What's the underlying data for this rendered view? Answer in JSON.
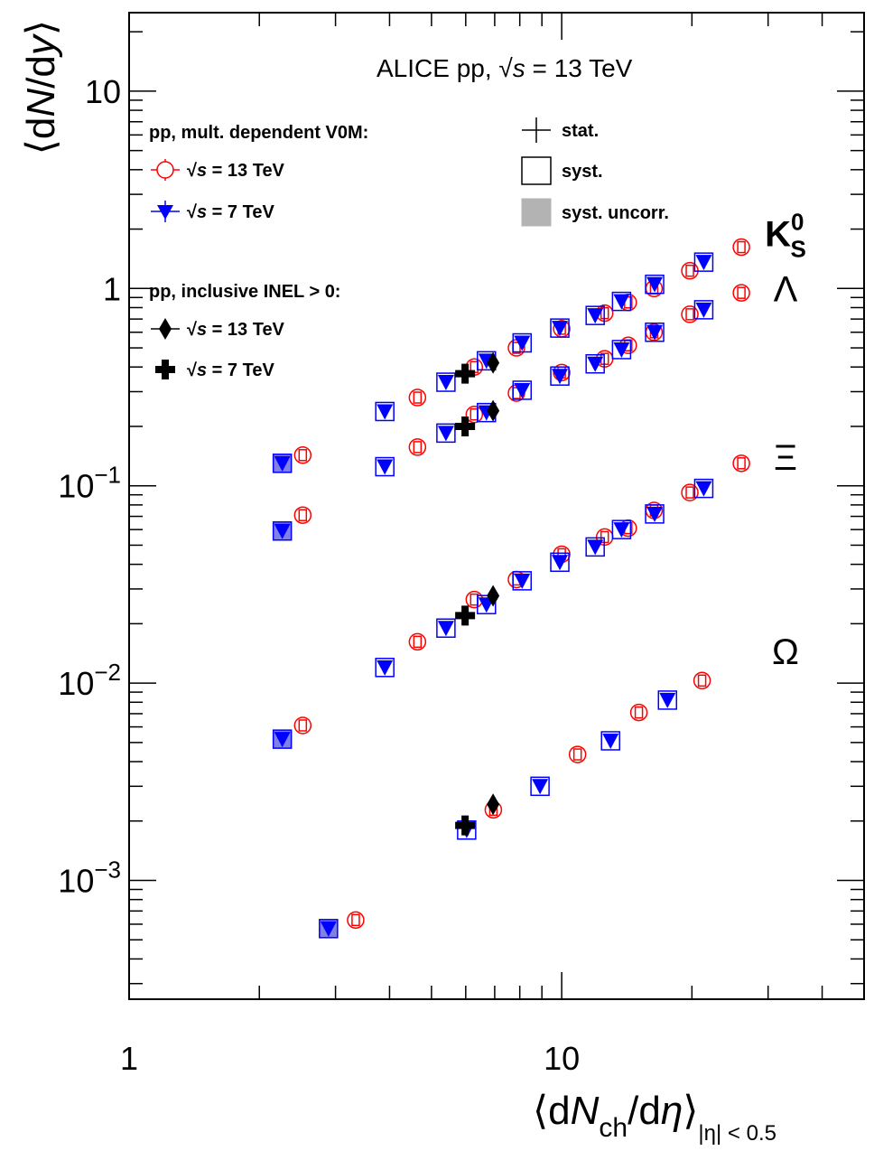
{
  "chart_data": {
    "type": "scatter",
    "title": "ALICE pp, √s = 13 TeV",
    "title_parts": {
      "pre": "ALICE pp, ",
      "sqrt": "√",
      "var": "s",
      "post": " = 13 TeV"
    },
    "xlabel": "⟨dNch/dη⟩|η| < 0.5",
    "xlabel_parts": {
      "open": "⟨d",
      "N": "N",
      "sub": "ch",
      "mid": "/d",
      "eta": "η",
      "close": "⟩",
      "range": "|η| < 0.5"
    },
    "ylabel": "⟨dN/dy⟩",
    "ylabel_parts": {
      "open": "⟨d",
      "N": "N",
      "mid": "/d",
      "y": "y",
      "close": "⟩"
    },
    "x_scale": "log",
    "y_scale": "log",
    "xlim": [
      1,
      50
    ],
    "ylim": [
      0.00025,
      25
    ],
    "x_ticks": [
      {
        "value": 1,
        "label": "1"
      },
      {
        "value": 10,
        "label": "10"
      }
    ],
    "y_ticks": [
      {
        "value": 0.001,
        "base": "10",
        "exp": "−3"
      },
      {
        "value": 0.01,
        "base": "10",
        "exp": "−2"
      },
      {
        "value": 0.1,
        "base": "10",
        "exp": "−1"
      },
      {
        "value": 1,
        "label": "1"
      },
      {
        "value": 10,
        "label": "10"
      }
    ],
    "grid": false,
    "legend_position": "top-left",
    "legend": {
      "heading_mult": "pp, mult. dependent V0M:",
      "heading_inel": "pp, inclusive INEL > 0:",
      "sqrt": "√",
      "s": "s",
      "e13": " = 13 TeV",
      "e7": " = 7 TeV",
      "stat": "stat.",
      "syst": "syst.",
      "syst_uncorr": "syst. uncorr."
    },
    "colors": {
      "pp13": "#ff0000",
      "pp7": "#0000ff",
      "pp7_uncorr_fill": "#8080e6",
      "inel": "#000000"
    },
    "particles": [
      {
        "id": "K0S",
        "label": "K",
        "sup": "0",
        "sub": "S",
        "label_y": 1.9
      },
      {
        "id": "Lambda",
        "label": "Λ",
        "label_y": 1.0
      },
      {
        "id": "Xi",
        "label": "Ξ",
        "label_y": 0.14
      },
      {
        "id": "Omega",
        "label": "Ω",
        "label_y": 0.0145
      }
    ],
    "series": [
      {
        "name": "pp, mult. dependent V0M √s = 13 TeV",
        "marker": "open-circle",
        "color": "#ff0000",
        "particle": "K0S",
        "x": [
          2.52,
          4.64,
          6.28,
          7.86,
          10.0,
          12.57,
          14.25,
          16.35,
          19.78,
          26.02
        ],
        "y": [
          0.143,
          0.28,
          0.4,
          0.5,
          0.625,
          0.75,
          0.85,
          1.0,
          1.23,
          1.62
        ]
      },
      {
        "name": "pp, mult. dependent V0M √s = 13 TeV",
        "marker": "open-circle",
        "color": "#ff0000",
        "particle": "Lambda",
        "x": [
          2.52,
          4.64,
          6.28,
          7.86,
          10.0,
          12.57,
          14.25,
          16.35,
          19.78,
          26.02
        ],
        "y": [
          0.071,
          0.157,
          0.23,
          0.295,
          0.375,
          0.44,
          0.515,
          0.6,
          0.74,
          0.95
        ]
      },
      {
        "name": "pp, mult. dependent V0M √s = 13 TeV",
        "marker": "open-circle",
        "color": "#ff0000",
        "particle": "Xi",
        "x": [
          2.52,
          4.64,
          6.28,
          7.86,
          10.0,
          12.57,
          14.25,
          16.35,
          19.78,
          26.02
        ],
        "y": [
          0.0061,
          0.0162,
          0.0265,
          0.0335,
          0.045,
          0.055,
          0.061,
          0.075,
          0.0925,
          0.13
        ]
      },
      {
        "name": "pp, mult. dependent V0M √s = 13 TeV",
        "marker": "open-circle",
        "color": "#ff0000",
        "particle": "Omega",
        "x": [
          3.34,
          6.95,
          10.88,
          15.08,
          21.11
        ],
        "y": [
          0.00063,
          0.00228,
          0.00435,
          0.0071,
          0.0103
        ]
      },
      {
        "name": "pp, mult. dependent V0M √s = 7 TeV",
        "marker": "filled-triangle-down",
        "color": "#0000ff",
        "particle": "K0S",
        "x": [
          2.26,
          3.9,
          5.4,
          6.7,
          8.1,
          9.9,
          11.95,
          13.75,
          16.4,
          21.3
        ],
        "y": [
          0.13,
          0.238,
          0.335,
          0.43,
          0.53,
          0.63,
          0.73,
          0.86,
          1.05,
          1.36
        ]
      },
      {
        "name": "pp, mult. dependent V0M √s = 7 TeV",
        "marker": "filled-triangle-down",
        "color": "#0000ff",
        "particle": "Lambda",
        "x": [
          2.26,
          3.9,
          5.4,
          6.7,
          8.1,
          9.9,
          11.95,
          13.75,
          16.4,
          21.3
        ],
        "y": [
          0.059,
          0.125,
          0.185,
          0.235,
          0.305,
          0.36,
          0.415,
          0.49,
          0.6,
          0.78
        ]
      },
      {
        "name": "pp, mult. dependent V0M √s = 7 TeV",
        "marker": "filled-triangle-down",
        "color": "#0000ff",
        "particle": "Xi",
        "x": [
          2.26,
          3.9,
          5.4,
          6.7,
          8.1,
          9.9,
          11.95,
          13.75,
          16.4,
          21.3
        ],
        "y": [
          0.0052,
          0.012,
          0.019,
          0.025,
          0.033,
          0.041,
          0.049,
          0.06,
          0.072,
          0.097
        ]
      },
      {
        "name": "pp, mult. dependent V0M √s = 7 TeV",
        "marker": "filled-triangle-down",
        "color": "#0000ff",
        "particle": "Omega",
        "x": [
          2.89,
          6.03,
          8.91,
          12.97,
          17.56
        ],
        "y": [
          0.00057,
          0.0018,
          0.003,
          0.0051,
          0.0082
        ]
      },
      {
        "name": "pp, inclusive INEL > 0 √s = 13 TeV",
        "marker": "filled-diamond",
        "color": "#000000",
        "x": [
          6.94,
          6.94,
          6.94,
          6.94
        ],
        "y": [
          0.42,
          0.24,
          0.0277,
          0.00243
        ]
      },
      {
        "name": "pp, inclusive INEL > 0 √s = 7 TeV",
        "marker": "filled-cross",
        "color": "#000000",
        "x": [
          5.98,
          5.98,
          5.98,
          5.98
        ],
        "y": [
          0.37,
          0.2,
          0.022,
          0.0019
        ]
      }
    ]
  }
}
